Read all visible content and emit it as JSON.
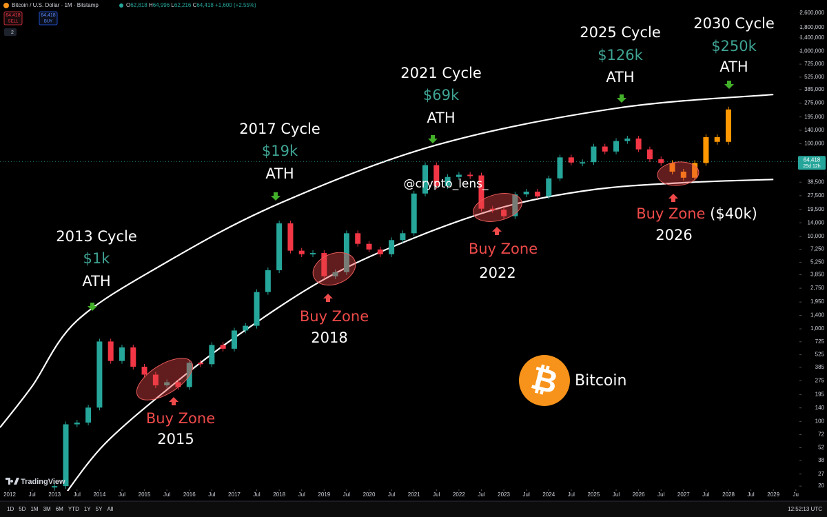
{
  "chart_data": {
    "type": "candlestick",
    "log_scale": true,
    "header": {
      "symbol": "Bitcoin / U.S. Dollar · 1M · Bitstamp",
      "ohlc_labels": [
        "O",
        "H",
        "L",
        "C"
      ],
      "open": "62,818",
      "high": "64,996",
      "low": "62,216",
      "close": "64,418",
      "change": "+1,600 (+2.55%)",
      "sell_price": "64,418",
      "sell": "SELL",
      "buy_price": "64,418",
      "buy": "BUY",
      "indicators": "2"
    },
    "xlim": [
      2011.785,
      2029.58
    ],
    "ylim": [
      15.5,
      3580000
    ],
    "series": [
      {
        "up_color": "#26a69a",
        "down_color": "#f23645",
        "x": [
          2013,
          2013.25,
          2013.5,
          2013.75,
          2014,
          2014.25,
          2014.5,
          2014.75,
          2015,
          2015.25,
          2015.5,
          2015.75,
          2016,
          2016.25,
          2016.5,
          2016.75,
          2017,
          2017.25,
          2017.5,
          2017.75,
          2018,
          2018.25,
          2018.5,
          2018.75,
          2019,
          2019.25,
          2019.5,
          2019.75,
          2020,
          2020.25,
          2020.5,
          2020.75,
          2021,
          2021.25,
          2021.5,
          2021.75,
          2022,
          2022.25,
          2022.5,
          2022.75,
          2023,
          2023.25,
          2023.5,
          2023.75,
          2024,
          2024.25,
          2024.5,
          2024.75,
          2025,
          2025.25,
          2025.5,
          2025.75,
          2026,
          2026.25,
          2026.5
        ],
        "values": [
          20,
          93,
          97,
          141,
          730,
          450,
          630,
          390,
          320,
          245,
          265,
          235,
          430,
          415,
          670,
          610,
          960,
          1080,
          2500,
          4300,
          13800,
          7000,
          6400,
          6600,
          3700,
          4100,
          10800,
          8300,
          7200,
          6400,
          9100,
          10800,
          29000,
          58800,
          35000,
          43800,
          46300,
          45500,
          19900,
          19400,
          16500,
          28400,
          30400,
          27000,
          42300,
          71300,
          62700,
          63300,
          93400,
          82500,
          107000,
          114000,
          87000,
          68000,
          62000
        ]
      },
      {
        "color": "#ff9800",
        "x": [
          2026.75,
          2027,
          2027.25,
          2027.5,
          2027.75,
          2028
        ],
        "values": [
          50000,
          43000,
          62000,
          118000,
          105000,
          235000
        ]
      }
    ],
    "bands": [
      {
        "color": "#ffffff",
        "x": [
          2011.785,
          2012.5,
          2013.5,
          2015.5,
          2018,
          2021.5,
          2025.5,
          2029
        ],
        "values": [
          86,
          240,
          1228,
          5280,
          22600,
          97000,
          242000,
          341000
        ]
      },
      {
        "color": "#ffffff",
        "x": [
          2013.2,
          2014.1,
          2015.5,
          2017,
          2019,
          2021,
          2023,
          2025,
          2027,
          2029
        ],
        "values": [
          15.5,
          56,
          220,
          800,
          3430,
          9600,
          20800,
          32000,
          38000,
          41200
        ]
      }
    ],
    "last_price": {
      "value": 64418,
      "label": "64,418"
    },
    "countdown": "25d 12h",
    "yticks": [
      {
        "value": 2600000,
        "label": "2,600,000"
      },
      {
        "value": 1800000,
        "label": "1,800,000"
      },
      {
        "value": 1400000,
        "label": "1,400,000"
      },
      {
        "value": 1000000,
        "label": "1,000,000"
      },
      {
        "value": 725000,
        "label": "725,000"
      },
      {
        "value": 525000,
        "label": "525,000"
      },
      {
        "value": 385000,
        "label": "385,000"
      },
      {
        "value": 275000,
        "label": "275,000"
      },
      {
        "value": 195000,
        "label": "195,000"
      },
      {
        "value": 140000,
        "label": "140,000"
      },
      {
        "value": 100000,
        "label": "100,000"
      },
      {
        "value": 38500,
        "label": "38,500"
      },
      {
        "value": 27500,
        "label": "27,500"
      },
      {
        "value": 19500,
        "label": "19,500"
      },
      {
        "value": 14000,
        "label": "14,000"
      },
      {
        "value": 10000,
        "label": "10,000"
      },
      {
        "value": 7250,
        "label": "7,250"
      },
      {
        "value": 5250,
        "label": "5,250"
      },
      {
        "value": 3850,
        "label": "3,850"
      },
      {
        "value": 2750,
        "label": "2,750"
      },
      {
        "value": 1950,
        "label": "1,950"
      },
      {
        "value": 1400,
        "label": "1,400"
      },
      {
        "value": 1000,
        "label": "1,000"
      },
      725,
      525,
      385,
      275,
      195,
      140,
      100,
      72,
      52,
      38,
      27,
      20
    ],
    "xticks": [
      2012,
      {
        "value": 2012.5,
        "label": "Jul"
      },
      2013,
      {
        "value": 2013.5,
        "label": "Jul"
      },
      2014,
      {
        "value": 2014.5,
        "label": "Jul"
      },
      2015,
      {
        "value": 2015.5,
        "label": "Jul"
      },
      2016,
      {
        "value": 2016.5,
        "label": "Jul"
      },
      2017,
      {
        "value": 2017.5,
        "label": "Jul"
      },
      2018,
      {
        "value": 2018.5,
        "label": "Jul"
      },
      2019,
      {
        "value": 2019.5,
        "label": "Jul"
      },
      2020,
      {
        "value": 2020.5,
        "label": "Jul"
      },
      2021,
      {
        "value": 2021.5,
        "label": "Jul"
      },
      2022,
      {
        "value": 2022.5,
        "label": "Jul"
      },
      2023,
      {
        "value": 2023.5,
        "label": "Jul"
      },
      2024,
      {
        "value": 2024.5,
        "label": "Jul"
      },
      2025,
      {
        "value": 2025.5,
        "label": "Jul"
      },
      2026,
      {
        "value": 2026.5,
        "label": "Jul"
      },
      2027,
      {
        "value": 2027.5,
        "label": "Jul"
      },
      2028,
      {
        "value": 2028.5,
        "label": "Jul"
      },
      2029,
      {
        "value": 2029.5,
        "label": "Ju"
      }
    ],
    "annotations": {
      "cycles": [
        {
          "title": "2013 Cycle",
          "price": "$1k",
          "label": "ATH"
        },
        {
          "title": "2017 Cycle",
          "price": "$19k",
          "label": "ATH"
        },
        {
          "title": "2021 Cycle",
          "price": "$69k",
          "label": "ATH"
        },
        {
          "title": "2025 Cycle",
          "price": "$126k",
          "label": "ATH"
        },
        {
          "title": "2030 Cycle",
          "price": "$250k",
          "label": "ATH"
        }
      ],
      "buy_zones": [
        {
          "label": "Buy Zone",
          "year": "2015"
        },
        {
          "label": "Buy Zone",
          "year": "2018"
        },
        {
          "label": "Buy Zone",
          "year": "2022"
        },
        {
          "label": "Buy Zone",
          "note": "($40k)",
          "year": "2026"
        }
      ],
      "watermark": "@crypto_lens_",
      "logo": "₿",
      "asset": "Bitcoin",
      "brand": "TradingView"
    },
    "toolbar": {
      "timeframes": [
        "1D",
        "5D",
        "1M",
        "3M",
        "6M",
        "YTD",
        "1Y",
        "5Y",
        "All"
      ],
      "clock": "12:52:13 UTC"
    }
  }
}
